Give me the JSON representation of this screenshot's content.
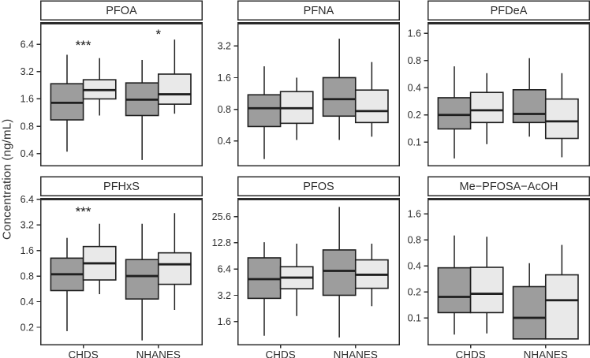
{
  "figure": {
    "ylabel": "Concentration (ng/mL)",
    "x_categories": [
      "CHDS",
      "NHANES"
    ],
    "colors": {
      "dark_fill": "#9d9d9d",
      "light_fill": "#e9e9e9",
      "box_stroke": "#1f1f1f",
      "panel_border": "#2b2b2b",
      "text": "#2e2e2e"
    }
  },
  "chart_data": [
    {
      "type": "boxplot",
      "title": "PFOA",
      "yscale": "log2",
      "ylim": [
        0.295,
        11
      ],
      "yticks": [
        0.4,
        0.8,
        1.6,
        3.2,
        6.4
      ],
      "categories": [
        "CHDS",
        "NHANES"
      ],
      "stat_order": [
        "whisker_low",
        "q1",
        "median",
        "q3",
        "whisker_high"
      ],
      "series": [
        {
          "name": "dark-gray",
          "values": {
            "CHDS": [
              0.42,
              0.94,
              1.45,
              2.35,
              4.9
            ],
            "NHANES": [
              0.34,
              1.05,
              1.57,
              2.4,
              4.3
            ]
          }
        },
        {
          "name": "light-gray",
          "values": {
            "CHDS": [
              1.05,
              1.6,
              2.0,
              2.6,
              4.5
            ],
            "NHANES": [
              1.1,
              1.4,
              1.8,
              3.0,
              7.2
            ]
          }
        }
      ],
      "annotations": [
        {
          "category": "CHDS",
          "label": "***",
          "value": 6.3
        },
        {
          "category": "NHANES",
          "label": "*",
          "value": 8.3
        }
      ]
    },
    {
      "type": "boxplot",
      "title": "PFNA",
      "yscale": "log2",
      "ylim": [
        0.234,
        5.3
      ],
      "yticks": [
        0.4,
        0.8,
        1.6,
        3.2
      ],
      "categories": [
        "CHDS",
        "NHANES"
      ],
      "stat_order": [
        "whisker_low",
        "q1",
        "median",
        "q3",
        "whisker_high"
      ],
      "series": [
        {
          "name": "dark-gray",
          "values": {
            "CHDS": [
              0.27,
              0.55,
              0.82,
              1.1,
              2.05
            ],
            "NHANES": [
              0.41,
              0.69,
              1.0,
              1.6,
              3.75
            ]
          }
        },
        {
          "name": "light-gray",
          "values": {
            "CHDS": [
              0.41,
              0.59,
              0.82,
              1.18,
              1.6
            ],
            "NHANES": [
              0.44,
              0.6,
              0.77,
              1.22,
              2.25
            ]
          }
        }
      ],
      "annotations": []
    },
    {
      "type": "boxplot",
      "title": "PFDeA",
      "yscale": "log2",
      "ylim": [
        0.055,
        2.09
      ],
      "yticks": [
        0.1,
        0.2,
        0.4,
        0.8,
        1.6
      ],
      "categories": [
        "CHDS",
        "NHANES"
      ],
      "stat_order": [
        "whisker_low",
        "q1",
        "median",
        "q3",
        "whisker_high"
      ],
      "series": [
        {
          "name": "dark-gray",
          "values": {
            "CHDS": [
              0.066,
              0.14,
              0.2,
              0.31,
              0.69
            ],
            "NHANES": [
              0.115,
              0.165,
              0.205,
              0.38,
              0.85
            ]
          }
        },
        {
          "name": "light-gray",
          "values": {
            "CHDS": [
              0.095,
              0.165,
              0.225,
              0.355,
              0.58
            ],
            "NHANES": [
              0.068,
              0.11,
              0.17,
              0.3,
              0.58
            ]
          }
        }
      ],
      "annotations": []
    },
    {
      "type": "boxplot",
      "title": "PFHxS",
      "yscale": "log2",
      "ylim": [
        0.125,
        6.5
      ],
      "yticks": [
        0.2,
        0.4,
        0.8,
        1.6,
        3.2,
        6.4
      ],
      "categories": [
        "CHDS",
        "NHANES"
      ],
      "stat_order": [
        "whisker_low",
        "q1",
        "median",
        "q3",
        "whisker_high"
      ],
      "series": [
        {
          "name": "dark-gray",
          "values": {
            "CHDS": [
              0.18,
              0.54,
              0.84,
              1.3,
              2.25
            ],
            "NHANES": [
              0.14,
              0.43,
              0.8,
              1.25,
              3.3
            ]
          }
        },
        {
          "name": "light-gray",
          "values": {
            "CHDS": [
              0.49,
              0.72,
              1.13,
              1.78,
              3.3
            ],
            "NHANES": [
              0.32,
              0.64,
              1.1,
              1.5,
              4.4
            ]
          }
        }
      ],
      "annotations": [
        {
          "category": "CHDS",
          "label": "***",
          "value": 4.6
        }
      ]
    },
    {
      "type": "boxplot",
      "title": "PFOS",
      "yscale": "log2",
      "ylim": [
        0.87,
        41
      ],
      "yticks": [
        1.6,
        3.2,
        6.4,
        12.8,
        25.6
      ],
      "categories": [
        "CHDS",
        "NHANES"
      ],
      "stat_order": [
        "whisker_low",
        "q1",
        "median",
        "q3",
        "whisker_high"
      ],
      "series": [
        {
          "name": "dark-gray",
          "values": {
            "CHDS": [
              1.1,
              2.95,
              4.9,
              8.6,
              13.0
            ],
            "NHANES": [
              1.05,
              3.2,
              6.1,
              10.6,
              33.0
            ]
          }
        },
        {
          "name": "light-gray",
          "values": {
            "CHDS": [
              1.85,
              3.8,
              5.1,
              6.8,
              12.5
            ],
            "NHANES": [
              2.4,
              3.85,
              5.5,
              8.15,
              12.5
            ]
          }
        }
      ],
      "annotations": []
    },
    {
      "type": "boxplot",
      "title": "Me−PFOSA−AcOH",
      "yscale": "log2",
      "ylim": [
        0.049,
        2.4
      ],
      "yticks": [
        0.1,
        0.2,
        0.4,
        0.8,
        1.6
      ],
      "categories": [
        "CHDS",
        "NHANES"
      ],
      "stat_order": [
        "whisker_low",
        "q1",
        "median",
        "q3",
        "whisker_high"
      ],
      "series": [
        {
          "name": "dark-gray",
          "values": {
            "CHDS": [
              0.064,
              0.115,
              0.175,
              0.38,
              0.9
            ],
            "NHANES": [
              0.057,
              0.057,
              0.1,
              0.23,
              0.43
            ]
          }
        },
        {
          "name": "light-gray",
          "values": {
            "CHDS": [
              0.066,
              0.115,
              0.19,
              0.385,
              0.87
            ],
            "NHANES": [
              0.057,
              0.057,
              0.16,
              0.315,
              0.7
            ]
          }
        }
      ],
      "annotations": []
    }
  ]
}
